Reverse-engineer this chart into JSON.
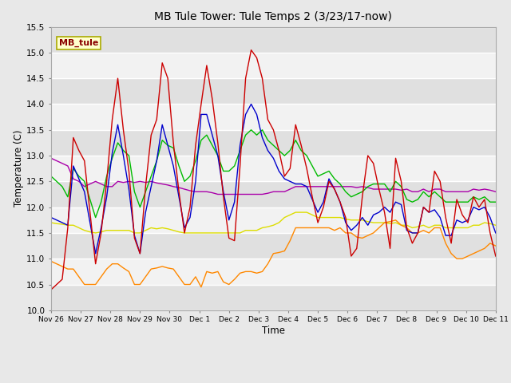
{
  "title": "MB Tule Tower: Tule Temps 2 (3/23/17-now)",
  "xlabel": "Time",
  "ylabel": "Temperature (C)",
  "ylim": [
    10.0,
    15.5
  ],
  "yticks": [
    10.0,
    10.5,
    11.0,
    11.5,
    12.0,
    12.5,
    13.0,
    13.5,
    14.0,
    14.5,
    15.0,
    15.5
  ],
  "bg_color": "#e8e8e8",
  "plot_bg": "#e8e8e8",
  "legend_label": "MB_tule",
  "series_colors": {
    "Tul2_Tw+2": "#cc0000",
    "Tul2_Ts-2": "#0000cc",
    "Tul2_Ts-4": "#00bb00",
    "Tul2_Ts-8": "#ff8800",
    "Tul2_Ts-16": "#dddd00",
    "Tul2_Ts-32": "#aa00aa"
  },
  "xtick_labels": [
    "Nov 26",
    "Nov 27",
    "Nov 28",
    "Nov 29",
    "Nov 30",
    "Dec 1",
    "Dec 2",
    "Dec 3",
    "Dec 4",
    "Dec 5",
    "Dec 6",
    "Dec 7",
    "Dec 8",
    "Dec 9",
    "Dec 10",
    "Dec 11"
  ],
  "tw2": [
    10.4,
    10.5,
    10.6,
    11.6,
    13.35,
    13.1,
    12.9,
    11.9,
    10.9,
    11.5,
    12.5,
    13.7,
    14.5,
    13.5,
    12.7,
    11.4,
    11.1,
    12.4,
    13.4,
    13.7,
    14.8,
    14.5,
    13.25,
    12.3,
    11.5,
    12.0,
    13.2,
    14.0,
    14.75,
    14.1,
    13.25,
    12.2,
    11.4,
    11.35,
    12.8,
    14.5,
    15.05,
    14.9,
    14.5,
    13.7,
    13.5,
    13.1,
    12.6,
    12.75,
    13.6,
    13.2,
    12.75,
    12.2,
    11.7,
    12.0,
    12.5,
    12.35,
    12.1,
    11.8,
    11.05,
    11.2,
    12.2,
    13.0,
    12.85,
    12.35,
    11.9,
    11.2,
    12.95,
    12.5,
    11.6,
    11.3,
    11.5,
    12.0,
    11.9,
    12.7,
    12.5,
    11.8,
    11.3,
    12.15,
    11.85,
    11.7,
    12.2,
    12.0,
    12.15,
    11.5,
    11.05
  ],
  "ts2": [
    11.8,
    11.75,
    11.7,
    11.65,
    12.8,
    12.55,
    12.3,
    11.7,
    11.1,
    11.6,
    12.2,
    13.05,
    13.6,
    13.0,
    12.35,
    11.45,
    11.1,
    11.9,
    12.4,
    12.9,
    13.6,
    13.2,
    12.8,
    12.2,
    11.6,
    11.8,
    12.5,
    13.8,
    13.8,
    13.4,
    13.0,
    12.3,
    11.75,
    12.1,
    13.2,
    13.8,
    14.0,
    13.8,
    13.35,
    13.1,
    12.95,
    12.7,
    12.55,
    12.5,
    12.45,
    12.45,
    12.4,
    12.15,
    11.9,
    12.1,
    12.55,
    12.35,
    12.1,
    11.7,
    11.55,
    11.65,
    11.8,
    11.65,
    11.85,
    11.9,
    12.0,
    11.9,
    12.1,
    12.05,
    11.55,
    11.5,
    11.5,
    12.0,
    11.9,
    11.95,
    11.8,
    11.45,
    11.45,
    11.75,
    11.7,
    11.75,
    12.0,
    11.95,
    12.0,
    11.8,
    11.5
  ],
  "ts4": [
    12.6,
    12.5,
    12.4,
    12.2,
    12.75,
    12.6,
    12.5,
    12.15,
    11.8,
    12.1,
    12.6,
    12.95,
    13.25,
    13.1,
    13.0,
    12.3,
    12.0,
    12.3,
    12.6,
    12.9,
    13.3,
    13.2,
    13.15,
    12.8,
    12.5,
    12.6,
    12.9,
    13.3,
    13.4,
    13.2,
    13.0,
    12.7,
    12.7,
    12.8,
    13.1,
    13.4,
    13.5,
    13.4,
    13.5,
    13.3,
    13.2,
    13.1,
    13.0,
    13.1,
    13.3,
    13.1,
    13.0,
    12.8,
    12.6,
    12.65,
    12.7,
    12.55,
    12.45,
    12.3,
    12.2,
    12.25,
    12.3,
    12.4,
    12.45,
    12.45,
    12.45,
    12.3,
    12.5,
    12.4,
    12.15,
    12.1,
    12.15,
    12.3,
    12.2,
    12.3,
    12.2,
    12.1,
    12.1,
    12.1,
    12.1,
    12.1,
    12.2,
    12.15,
    12.2,
    12.1,
    12.1
  ],
  "ts8": [
    10.95,
    10.9,
    10.85,
    10.8,
    10.8,
    10.65,
    10.5,
    10.5,
    10.5,
    10.65,
    10.8,
    10.9,
    10.9,
    10.82,
    10.75,
    10.5,
    10.5,
    10.65,
    10.8,
    10.82,
    10.85,
    10.82,
    10.8,
    10.65,
    10.5,
    10.5,
    10.65,
    10.45,
    10.75,
    10.72,
    10.75,
    10.55,
    10.5,
    10.6,
    10.72,
    10.75,
    10.75,
    10.72,
    10.75,
    10.9,
    11.1,
    11.12,
    11.15,
    11.35,
    11.6,
    11.6,
    11.6,
    11.6,
    11.6,
    11.6,
    11.6,
    11.55,
    11.6,
    11.5,
    11.5,
    11.42,
    11.4,
    11.45,
    11.5,
    11.6,
    11.7,
    11.72,
    11.75,
    11.65,
    11.6,
    11.5,
    11.5,
    11.55,
    11.5,
    11.6,
    11.6,
    11.3,
    11.1,
    11.0,
    11.0,
    11.05,
    11.1,
    11.15,
    11.2,
    11.3,
    11.25
  ],
  "ts16": [
    11.7,
    11.68,
    11.67,
    11.65,
    11.65,
    11.6,
    11.55,
    11.52,
    11.5,
    11.52,
    11.55,
    11.55,
    11.55,
    11.55,
    11.55,
    11.5,
    11.5,
    11.55,
    11.6,
    11.58,
    11.6,
    11.58,
    11.55,
    11.52,
    11.5,
    11.5,
    11.5,
    11.5,
    11.5,
    11.5,
    11.5,
    11.5,
    11.5,
    11.5,
    11.5,
    11.55,
    11.55,
    11.55,
    11.6,
    11.62,
    11.65,
    11.7,
    11.8,
    11.85,
    11.9,
    11.9,
    11.9,
    11.85,
    11.8,
    11.8,
    11.8,
    11.8,
    11.8,
    11.77,
    11.75,
    11.75,
    11.75,
    11.72,
    11.7,
    11.7,
    11.7,
    11.68,
    11.7,
    11.65,
    11.65,
    11.6,
    11.62,
    11.65,
    11.6,
    11.65,
    11.65,
    11.6,
    11.6,
    11.6,
    11.6,
    11.6,
    11.65,
    11.65,
    11.7,
    11.68,
    11.65
  ],
  "ts32": [
    12.95,
    12.9,
    12.85,
    12.8,
    12.55,
    12.5,
    12.4,
    12.45,
    12.5,
    12.45,
    12.4,
    12.4,
    12.5,
    12.48,
    12.5,
    12.48,
    12.5,
    12.48,
    12.5,
    12.47,
    12.45,
    12.43,
    12.4,
    12.38,
    12.35,
    12.32,
    12.3,
    12.3,
    12.3,
    12.28,
    12.25,
    12.25,
    12.25,
    12.25,
    12.25,
    12.25,
    12.25,
    12.25,
    12.25,
    12.27,
    12.3,
    12.3,
    12.3,
    12.35,
    12.4,
    12.4,
    12.4,
    12.4,
    12.4,
    12.4,
    12.4,
    12.4,
    12.4,
    12.4,
    12.4,
    12.38,
    12.4,
    12.38,
    12.35,
    12.35,
    12.35,
    12.35,
    12.35,
    12.33,
    12.35,
    12.3,
    12.3,
    12.35,
    12.3,
    12.35,
    12.35,
    12.3,
    12.3,
    12.3,
    12.3,
    12.3,
    12.35,
    12.33,
    12.35,
    12.33,
    12.3
  ]
}
